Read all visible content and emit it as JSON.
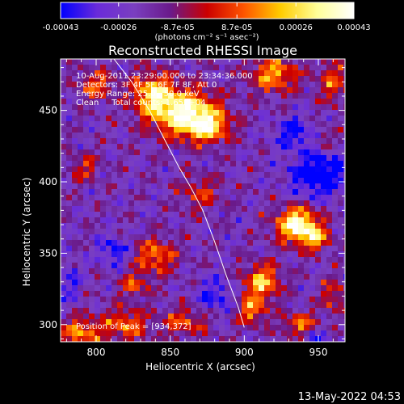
{
  "chart_data": {
    "type": "heatmap",
    "title": "Reconstructed RHESSI Image",
    "xlabel": "Heliocentric X (arcsec)",
    "ylabel": "Heliocentric Y (arcsec)",
    "xlim": [
      776,
      968
    ],
    "ylim": [
      288,
      486
    ],
    "x_ticks": [
      800,
      850,
      900,
      950
    ],
    "y_ticks": [
      300,
      350,
      400,
      450
    ],
    "x_tick_labels": [
      "800",
      "850",
      "900",
      "950"
    ],
    "y_tick_labels": [
      "300",
      "350",
      "400",
      "450"
    ],
    "colorbar": {
      "range": [
        -0.00043,
        0.00043
      ],
      "ticks": [
        -0.00043,
        -0.00026,
        -8.7e-05,
        8.7e-05,
        0.00026,
        0.00043
      ],
      "tick_labels": [
        "-0.00043",
        "-0.00026",
        "-8.7e-05",
        "8.7e-05",
        "0.00026",
        "0.00043"
      ],
      "units": "(photons cm⁻² s⁻¹ asec⁻²)",
      "colors": [
        "#0000ff",
        "#6a2bd9",
        "#7a3fc0",
        "#6a1a8a",
        "#cc0000",
        "#ff5500",
        "#ffcc00",
        "#ffff99",
        "#ffffff"
      ]
    },
    "annotations": [
      "10-Aug-2011 23:29:00.000 to 23:34:36.000",
      "Detectors: 3F 4F 5F 6F 7F 8F, Att 0",
      "Energy Range: 25.0 - 50.0 keV",
      "Clean     Total counts: 1.65E+04"
    ],
    "peak_label": "Position of Peak = [934,372]",
    "peak": [
      934,
      372
    ],
    "limb_curve": {
      "x": [
        812,
        824,
        836,
        848,
        856,
        864,
        872,
        880,
        888,
        896,
        900
      ],
      "y": [
        486,
        470,
        450,
        426,
        410,
        396,
        380,
        358,
        334,
        312,
        298
      ]
    },
    "grid": false,
    "colormap": "blue-purple-red-yellow-white"
  },
  "footer": {
    "timestamp": "13-May-2022 04:53"
  }
}
